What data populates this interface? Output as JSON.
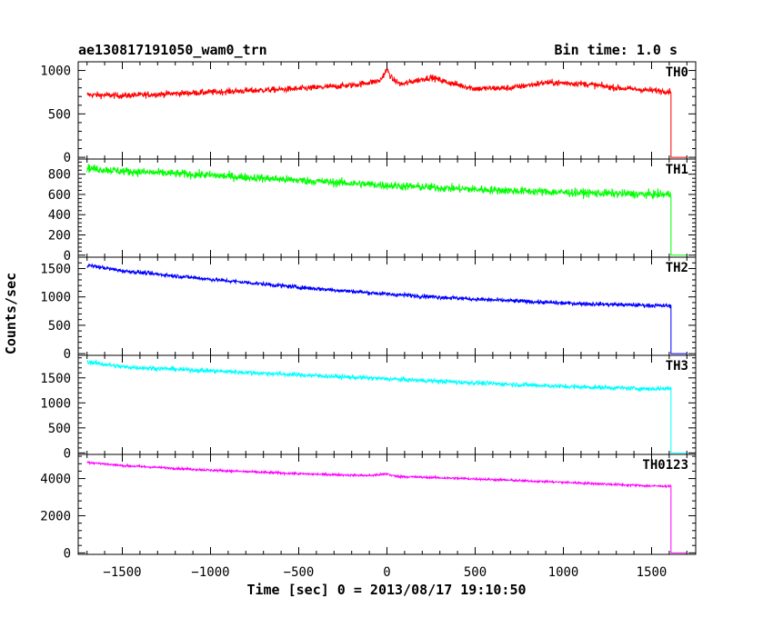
{
  "header": {
    "title": "ae130817191050_wam0_trn",
    "bin_time": "Bin time: 1.0 s"
  },
  "chart_data": {
    "type": "line",
    "title": "ae130817191050_wam0_trn",
    "xlabel": "Time [sec] 0 = 2013/08/17 19:10:50",
    "ylabel": "Counts/sec",
    "xlim": [
      -1750,
      1750
    ],
    "xticks": [
      -1500,
      -1000,
      -500,
      0,
      500,
      1000,
      1500
    ],
    "xtick_labels": [
      "−1500",
      "−1000",
      "−500",
      "0",
      "500",
      "1000",
      "1500"
    ],
    "grid": false,
    "panels": [
      {
        "name": "TH0",
        "color": "#ff0000",
        "ylim": [
          -20,
          1100
        ],
        "yticks": [
          0,
          500,
          1000
        ],
        "noise": 35,
        "data_range": [
          -1700,
          1610
        ],
        "profile": [
          [
            -1700,
            720
          ],
          [
            -1500,
            710
          ],
          [
            -1000,
            750
          ],
          [
            -500,
            790
          ],
          [
            -200,
            830
          ],
          [
            -40,
            880
          ],
          [
            0,
            1010
          ],
          [
            30,
            900
          ],
          [
            80,
            840
          ],
          [
            200,
            900
          ],
          [
            250,
            920
          ],
          [
            350,
            860
          ],
          [
            500,
            790
          ],
          [
            700,
            800
          ],
          [
            900,
            860
          ],
          [
            1100,
            850
          ],
          [
            1300,
            800
          ],
          [
            1500,
            770
          ],
          [
            1610,
            760
          ]
        ]
      },
      {
        "name": "TH1",
        "color": "#00ff00",
        "ylim": [
          -20,
          950
        ],
        "yticks": [
          0,
          200,
          400,
          600,
          800
        ],
        "noise": 40,
        "data_range": [
          -1700,
          1610
        ],
        "profile": [
          [
            -1700,
            860
          ],
          [
            -1500,
            830
          ],
          [
            -1000,
            790
          ],
          [
            -500,
            740
          ],
          [
            0,
            690
          ],
          [
            500,
            650
          ],
          [
            1000,
            620
          ],
          [
            1500,
            600
          ],
          [
            1610,
            600
          ]
        ]
      },
      {
        "name": "TH2",
        "color": "#0000ff",
        "ylim": [
          -30,
          1700
        ],
        "yticks": [
          0,
          500,
          1000,
          1500
        ],
        "noise": 35,
        "data_range": [
          -1700,
          1610
        ],
        "profile": [
          [
            -1700,
            1560
          ],
          [
            -1500,
            1460
          ],
          [
            -1000,
            1310
          ],
          [
            -500,
            1170
          ],
          [
            0,
            1050
          ],
          [
            500,
            960
          ],
          [
            1000,
            890
          ],
          [
            1500,
            850
          ],
          [
            1610,
            840
          ]
        ]
      },
      {
        "name": "TH3",
        "color": "#00ffff",
        "ylim": [
          -30,
          1950
        ],
        "yticks": [
          0,
          500,
          1000,
          1500
        ],
        "noise": 45,
        "data_range": [
          -1700,
          1610
        ],
        "profile": [
          [
            -1700,
            1820
          ],
          [
            -1500,
            1720
          ],
          [
            -1000,
            1640
          ],
          [
            -500,
            1560
          ],
          [
            0,
            1480
          ],
          [
            500,
            1400
          ],
          [
            1000,
            1330
          ],
          [
            1500,
            1280
          ],
          [
            1610,
            1290
          ]
        ]
      },
      {
        "name": "TH0123",
        "color": "#ff00ff",
        "ylim": [
          -80,
          5300
        ],
        "yticks": [
          0,
          2000,
          4000
        ],
        "noise": 60,
        "data_range": [
          -1700,
          1610
        ],
        "profile": [
          [
            -1700,
            4880
          ],
          [
            -1500,
            4700
          ],
          [
            -1000,
            4450
          ],
          [
            -500,
            4260
          ],
          [
            -100,
            4160
          ],
          [
            0,
            4250
          ],
          [
            50,
            4120
          ],
          [
            500,
            3980
          ],
          [
            1000,
            3800
          ],
          [
            1500,
            3600
          ],
          [
            1610,
            3600
          ]
        ]
      }
    ]
  }
}
